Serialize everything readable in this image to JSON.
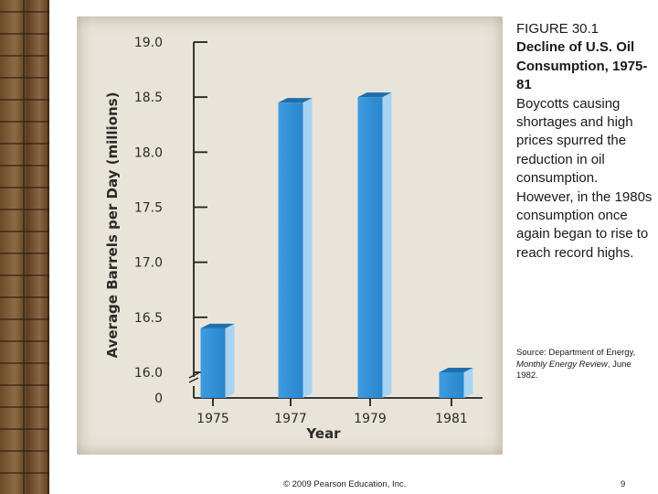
{
  "figure": {
    "number": "FIGURE 30.1",
    "title": "Decline of U.S. Oil Consumption, 1975-81",
    "description": "Boycotts causing shortages and high prices spurred the reduction in oil consumption. However, in the 1980s consumption once again began to rise to reach record highs."
  },
  "source": {
    "prefix": "Source: Department of Energy, ",
    "publication": "Monthly Energy Review",
    "suffix": ", June 1982."
  },
  "footer": {
    "copyright": "© 2009 Pearson Education, Inc.",
    "page": "9"
  },
  "chart_data": {
    "type": "bar",
    "categories": [
      "1975",
      "1977",
      "1979",
      "1981"
    ],
    "values": [
      16.4,
      18.45,
      18.5,
      16.0
    ],
    "xlabel": "Year",
    "ylabel": "Average Barrels per Day (millions)",
    "yticks": [
      "19.0",
      "18.5",
      "18.0",
      "17.5",
      "17.0",
      "16.5",
      "16.0"
    ],
    "axis_break_label": "0",
    "ylim": [
      16.0,
      19.0
    ],
    "grid": false,
    "bar_color": "#2f8fd6"
  }
}
